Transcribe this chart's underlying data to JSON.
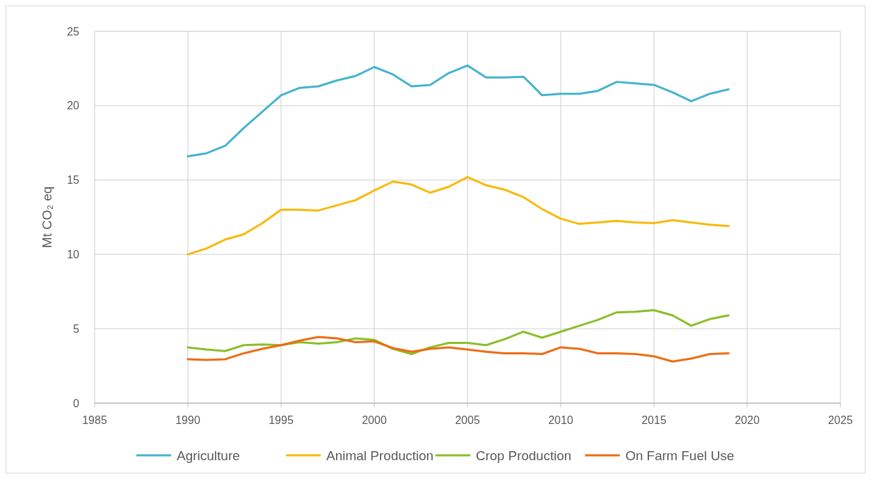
{
  "chart_data": {
    "type": "line",
    "ylabel": "Mt CO₂ eq",
    "xlim": [
      1985,
      2025
    ],
    "xticks": [
      1985,
      1990,
      1995,
      2000,
      2005,
      2010,
      2015,
      2020,
      2025
    ],
    "ylim": [
      0,
      25
    ],
    "yticks": [
      0,
      5,
      10,
      15,
      20,
      25
    ],
    "grid": true,
    "legend": "bottom",
    "marker": "none",
    "line_style": "solid",
    "x": [
      1990,
      1991,
      1992,
      1993,
      1994,
      1995,
      1996,
      1997,
      1998,
      1999,
      2000,
      2001,
      2002,
      2003,
      2004,
      2005,
      2006,
      2007,
      2008,
      2009,
      2010,
      2011,
      2012,
      2013,
      2014,
      2015,
      2016,
      2017,
      2018,
      2019
    ],
    "series": [
      {
        "name": "Agriculture",
        "color": "#45b3cf",
        "values": [
          16.6,
          16.8,
          17.3,
          18.5,
          19.6,
          20.7,
          21.2,
          21.3,
          21.7,
          22.0,
          22.6,
          22.1,
          21.3,
          21.4,
          22.2,
          22.7,
          21.9,
          21.9,
          21.95,
          20.7,
          20.8,
          20.8,
          21.0,
          21.6,
          21.5,
          21.4,
          20.9,
          20.3,
          20.8,
          21.1
        ]
      },
      {
        "name": "Animal Production",
        "color": "#f9b90a",
        "values": [
          10.0,
          10.4,
          11.0,
          11.35,
          12.1,
          13.0,
          13.0,
          12.95,
          13.3,
          13.65,
          14.3,
          14.9,
          14.7,
          14.15,
          14.55,
          15.2,
          14.65,
          14.35,
          13.85,
          13.05,
          12.4,
          12.05,
          12.15,
          12.25,
          12.15,
          12.1,
          12.3,
          12.15,
          12.0,
          11.9
        ]
      },
      {
        "name": "Crop Production",
        "color": "#8cbd2a",
        "values": [
          3.75,
          3.6,
          3.5,
          3.9,
          3.95,
          3.9,
          4.1,
          4.0,
          4.1,
          4.35,
          4.25,
          3.65,
          3.3,
          3.75,
          4.05,
          4.05,
          3.9,
          4.3,
          4.8,
          4.4,
          4.8,
          5.2,
          5.6,
          6.1,
          6.15,
          6.25,
          5.9,
          5.2,
          5.65,
          5.9
        ]
      },
      {
        "name": "On Farm Fuel Use",
        "color": "#ee6c12",
        "values": [
          2.95,
          2.9,
          2.95,
          3.35,
          3.65,
          3.9,
          4.2,
          4.45,
          4.35,
          4.1,
          4.15,
          3.7,
          3.45,
          3.65,
          3.75,
          3.6,
          3.45,
          3.35,
          3.35,
          3.3,
          3.75,
          3.65,
          3.35,
          3.35,
          3.3,
          3.15,
          2.8,
          3.0,
          3.3,
          3.35
        ]
      }
    ]
  }
}
